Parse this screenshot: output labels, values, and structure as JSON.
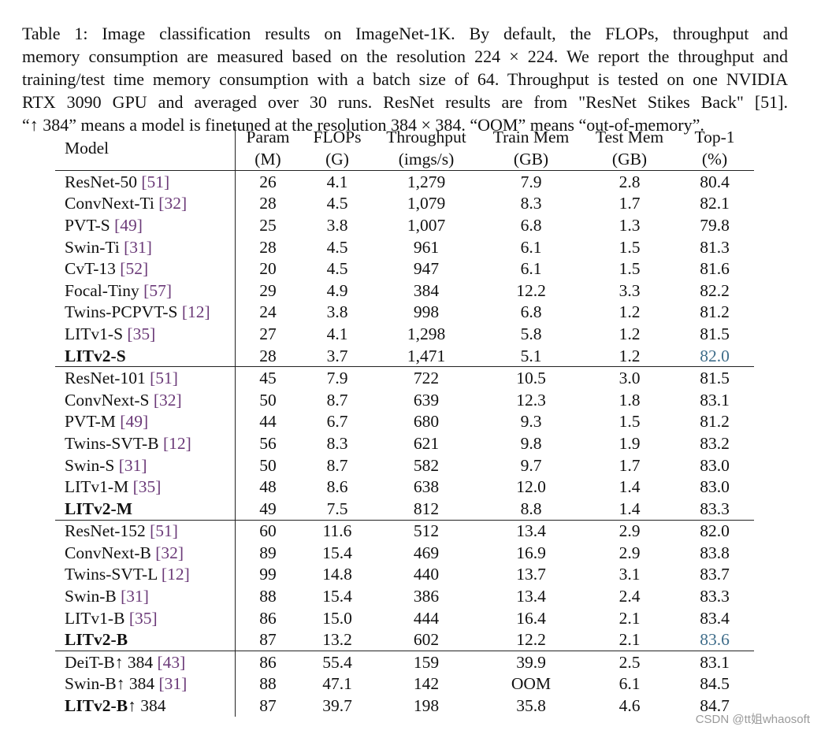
{
  "caption": {
    "lines": [
      "Table 1: Image classification results on ImageNet-1K. By default, the FLOPs, throughput and",
      "memory consumption are measured based on the resolution 224 × 224. We report the throughput and",
      "training/test time memory consumption with a batch size of 64. Throughput is tested on one NVIDIA",
      "RTX 3090 GPU and averaged over 30 runs. ResNet results are from \"ResNet Stikes Back\" [51].",
      "“↑ 384” means a model is finetuned at the resolution 384 × 384. “OOM” means “out-of-memory”."
    ]
  },
  "table": {
    "header": {
      "model": "Model",
      "cols": [
        {
          "top": "Param",
          "bottom": "(M)"
        },
        {
          "top": "FLOPs",
          "bottom": "(G)"
        },
        {
          "top": "Throughput",
          "bottom": "(imgs/s)"
        },
        {
          "top": "Train Mem",
          "bottom": "(GB)"
        },
        {
          "top": "Test Mem",
          "bottom": "(GB)"
        },
        {
          "top": "Top-1",
          "bottom": "(%)"
        }
      ]
    },
    "rows": [
      {
        "name": "ResNet-50 ",
        "ref": "[51]",
        "vals": [
          "26",
          "4.1",
          "1,279",
          "7.9",
          "2.8",
          "80.4"
        ],
        "bold": [],
        "hl": [],
        "group_start": true
      },
      {
        "name": "ConvNext-Ti ",
        "ref": "[32]",
        "vals": [
          "28",
          "4.5",
          "1,079",
          "8.3",
          "1.7",
          "82.1"
        ],
        "bold": [],
        "hl": []
      },
      {
        "name": "PVT-S ",
        "ref": "[49]",
        "vals": [
          "25",
          "3.8",
          "1,007",
          "6.8",
          "1.3",
          "79.8"
        ],
        "bold": [],
        "hl": []
      },
      {
        "name": "Swin-Ti ",
        "ref": "[31]",
        "vals": [
          "28",
          "4.5",
          "961",
          "6.1",
          "1.5",
          "81.3"
        ],
        "bold": [],
        "hl": []
      },
      {
        "name": "CvT-13 ",
        "ref": "[52]",
        "vals": [
          "20",
          "4.5",
          "947",
          "6.1",
          "1.5",
          "81.6"
        ],
        "bold": [],
        "hl": []
      },
      {
        "name": "Focal-Tiny ",
        "ref": "[57]",
        "vals": [
          "29",
          "4.9",
          "384",
          "12.2",
          "3.3",
          "82.2"
        ],
        "bold": [
          5
        ],
        "hl": []
      },
      {
        "name": "Twins-PCPVT-S ",
        "ref": "[12]",
        "vals": [
          "24",
          "3.8",
          "998",
          "6.8",
          "1.2",
          "81.2"
        ],
        "bold": [],
        "hl": []
      },
      {
        "name": "LITv1-S ",
        "ref": "[35]",
        "vals": [
          "27",
          "4.1",
          "1,298",
          "5.8",
          "1.2",
          "81.5"
        ],
        "bold": [],
        "hl": []
      },
      {
        "name": "LITv2-S",
        "ref": "",
        "name_bold": true,
        "vals": [
          "28",
          "3.7",
          "1,471",
          "5.1",
          "1.2",
          "82.0"
        ],
        "bold": [
          2,
          3,
          4
        ],
        "hl": [
          5
        ]
      },
      {
        "name": "ResNet-101 ",
        "ref": "[51]",
        "vals": [
          "45",
          "7.9",
          "722",
          "10.5",
          "3.0",
          "81.5"
        ],
        "bold": [],
        "hl": [],
        "group_start": true
      },
      {
        "name": "ConvNext-S ",
        "ref": "[32]",
        "vals": [
          "50",
          "8.7",
          "639",
          "12.3",
          "1.8",
          "83.1"
        ],
        "bold": [],
        "hl": []
      },
      {
        "name": "PVT-M ",
        "ref": "[49]",
        "vals": [
          "44",
          "6.7",
          "680",
          "9.3",
          "1.5",
          "81.2"
        ],
        "bold": [],
        "hl": []
      },
      {
        "name": "Twins-SVT-B ",
        "ref": "[12]",
        "vals": [
          "56",
          "8.3",
          "621",
          "9.8",
          "1.9",
          "83.2"
        ],
        "bold": [],
        "hl": []
      },
      {
        "name": "Swin-S ",
        "ref": "[31]",
        "vals": [
          "50",
          "8.7",
          "582",
          "9.7",
          "1.7",
          "83.0"
        ],
        "bold": [],
        "hl": []
      },
      {
        "name": "LITv1-M ",
        "ref": "[35]",
        "vals": [
          "48",
          "8.6",
          "638",
          "12.0",
          "1.4",
          "83.0"
        ],
        "bold": [],
        "hl": []
      },
      {
        "name": "LITv2-M",
        "ref": "",
        "name_bold": true,
        "vals": [
          "49",
          "7.5",
          "812",
          "8.8",
          "1.4",
          "83.3"
        ],
        "bold": [
          2,
          3,
          4,
          5
        ],
        "hl": []
      },
      {
        "name": "ResNet-152 ",
        "ref": "[51]",
        "vals": [
          "60",
          "11.6",
          "512",
          "13.4",
          "2.9",
          "82.0"
        ],
        "bold": [],
        "hl": [],
        "group_start": true
      },
      {
        "name": "ConvNext-B ",
        "ref": "[32]",
        "vals": [
          "89",
          "15.4",
          "469",
          "16.9",
          "2.9",
          "83.8"
        ],
        "bold": [
          5
        ],
        "hl": []
      },
      {
        "name": "Twins-SVT-L ",
        "ref": "[12]",
        "vals": [
          "99",
          "14.8",
          "440",
          "13.7",
          "3.1",
          "83.7"
        ],
        "bold": [],
        "hl": []
      },
      {
        "name": "Swin-B ",
        "ref": "[31]",
        "vals": [
          "88",
          "15.4",
          "386",
          "13.4",
          "2.4",
          "83.3"
        ],
        "bold": [],
        "hl": []
      },
      {
        "name": "LITv1-B ",
        "ref": "[35]",
        "vals": [
          "86",
          "15.0",
          "444",
          "16.4",
          "2.1",
          "83.4"
        ],
        "bold": [],
        "hl": []
      },
      {
        "name": "LITv2-B",
        "ref": "",
        "name_bold": true,
        "vals": [
          "87",
          "13.2",
          "602",
          "12.2",
          "2.1",
          "83.6"
        ],
        "bold": [
          2,
          3,
          4
        ],
        "hl": [
          5
        ]
      },
      {
        "name": "DeiT-B↑ 384 ",
        "ref": "[43]",
        "vals": [
          "86",
          "55.4",
          "159",
          "39.9",
          "2.5",
          "83.1"
        ],
        "bold": [
          4
        ],
        "hl": [],
        "group_start": true
      },
      {
        "name": "Swin-B↑ 384 ",
        "ref": "[31]",
        "vals": [
          "88",
          "47.1",
          "142",
          "OOM",
          "6.1",
          "84.5"
        ],
        "bold": [],
        "hl": []
      },
      {
        "name": "LITv2-B",
        "name_suffix": "↑ 384",
        "ref": "",
        "name_bold": true,
        "vals": [
          "87",
          "39.7",
          "198",
          "35.8",
          "4.6",
          "84.7"
        ],
        "bold": [
          2,
          3,
          5
        ],
        "hl": []
      }
    ]
  },
  "watermark": "CSDN @tt姐whaosoft"
}
